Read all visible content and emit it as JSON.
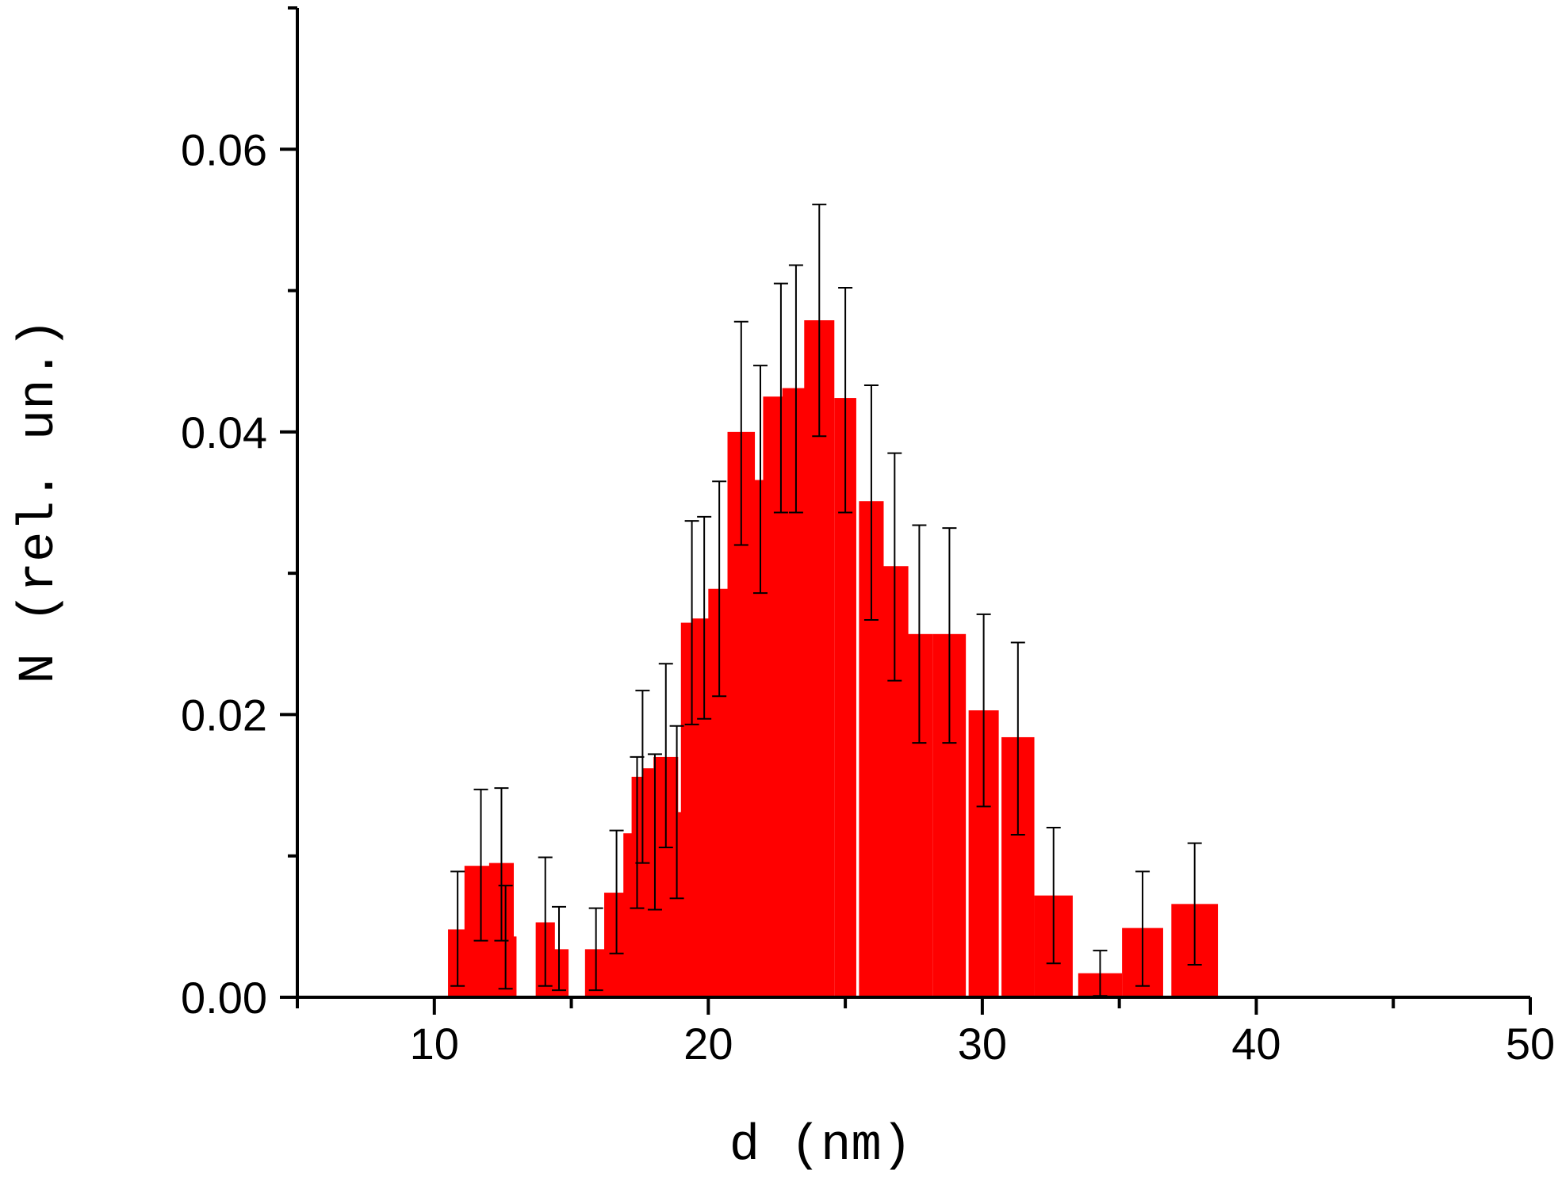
{
  "chart_data": {
    "type": "bar",
    "xlabel": "d (nm)",
    "ylabel": "N (rel. un.)",
    "xlim": [
      5,
      50
    ],
    "ylim": [
      0,
      0.07
    ],
    "x_ticks": [
      "10",
      "20",
      "30",
      "40",
      "50"
    ],
    "y_ticks": [
      "0.00",
      "0.02",
      "0.04",
      "0.06"
    ],
    "grid": false,
    "bar_color": "#ff0000",
    "error_bar_color": "#000000",
    "series": [
      {
        "bars": [
          {
            "x0": 10.5,
            "x1": 11.2,
            "value": 0.0048,
            "err_low": 0.0008,
            "err_high": 0.0089
          },
          {
            "x0": 11.1,
            "x1": 12.3,
            "value": 0.0093,
            "err_low": 0.004,
            "err_high": 0.0147
          },
          {
            "x0": 12.0,
            "x1": 12.9,
            "value": 0.0095,
            "err_low": 0.004,
            "err_high": 0.0148
          },
          {
            "x0": 12.2,
            "x1": 13.0,
            "value": 0.0043,
            "err_low": 0.0006,
            "err_high": 0.0079
          },
          {
            "x0": 13.7,
            "x1": 14.4,
            "value": 0.0053,
            "err_low": 0.0008,
            "err_high": 0.0099
          },
          {
            "x0": 14.2,
            "x1": 14.9,
            "value": 0.0034,
            "err_low": 0.0005,
            "err_high": 0.0064
          },
          {
            "x0": 15.5,
            "x1": 16.3,
            "value": 0.0034,
            "err_low": 0.0005,
            "err_high": 0.0063
          },
          {
            "x0": 16.2,
            "x1": 17.1,
            "value": 0.0074,
            "err_low": 0.0031,
            "err_high": 0.0118
          },
          {
            "x0": 16.9,
            "x1": 17.9,
            "value": 0.0116,
            "err_low": 0.0063,
            "err_high": 0.017
          },
          {
            "x0": 17.2,
            "x1": 18.0,
            "value": 0.0156,
            "err_low": 0.0095,
            "err_high": 0.0217
          },
          {
            "x0": 17.6,
            "x1": 18.5,
            "value": 0.0162,
            "err_low": 0.0062,
            "err_high": 0.0172
          },
          {
            "x0": 18.0,
            "x1": 18.9,
            "value": 0.017,
            "err_low": 0.0106,
            "err_high": 0.0236
          },
          {
            "x0": 18.5,
            "x1": 19.2,
            "value": 0.0131,
            "err_low": 0.007,
            "err_high": 0.0192
          },
          {
            "x0": 19.0,
            "x1": 19.8,
            "value": 0.0265,
            "err_low": 0.0193,
            "err_high": 0.0337
          },
          {
            "x0": 19.4,
            "x1": 20.3,
            "value": 0.0268,
            "err_low": 0.0197,
            "err_high": 0.034
          },
          {
            "x0": 20.0,
            "x1": 20.8,
            "value": 0.0289,
            "err_low": 0.0213,
            "err_high": 0.0365
          },
          {
            "x0": 20.7,
            "x1": 21.7,
            "value": 0.04,
            "err_low": 0.032,
            "err_high": 0.0478
          },
          {
            "x0": 21.5,
            "x1": 22.3,
            "value": 0.0366,
            "err_low": 0.0286,
            "err_high": 0.0447
          },
          {
            "x0": 22.0,
            "x1": 23.3,
            "value": 0.0425,
            "err_low": 0.0343,
            "err_high": 0.0505
          },
          {
            "x0": 22.7,
            "x1": 23.7,
            "value": 0.0431,
            "err_low": 0.0343,
            "err_high": 0.0518
          },
          {
            "x0": 23.5,
            "x1": 24.6,
            "value": 0.0479,
            "err_low": 0.0397,
            "err_high": 0.0561
          },
          {
            "x0": 24.6,
            "x1": 25.4,
            "value": 0.0424,
            "err_low": 0.0343,
            "err_high": 0.0502
          },
          {
            "x0": 25.5,
            "x1": 26.4,
            "value": 0.0351,
            "err_low": 0.0267,
            "err_high": 0.0433
          },
          {
            "x0": 26.3,
            "x1": 27.3,
            "value": 0.0305,
            "err_low": 0.0224,
            "err_high": 0.0385
          },
          {
            "x0": 27.2,
            "x1": 28.2,
            "value": 0.0257,
            "err_low": 0.018,
            "err_high": 0.0334
          },
          {
            "x0": 28.2,
            "x1": 29.4,
            "value": 0.0257,
            "err_low": 0.018,
            "err_high": 0.0332
          },
          {
            "x0": 29.5,
            "x1": 30.6,
            "value": 0.0203,
            "err_low": 0.0135,
            "err_high": 0.0271
          },
          {
            "x0": 30.7,
            "x1": 31.9,
            "value": 0.0184,
            "err_low": 0.0115,
            "err_high": 0.0251
          },
          {
            "x0": 31.9,
            "x1": 33.3,
            "value": 0.0072,
            "err_low": 0.0024,
            "err_high": 0.012
          },
          {
            "x0": 33.5,
            "x1": 35.1,
            "value": 0.0017,
            "err_low": 0.0001,
            "err_high": 0.0033
          },
          {
            "x0": 35.1,
            "x1": 36.6,
            "value": 0.0049,
            "err_low": 0.0008,
            "err_high": 0.0089
          },
          {
            "x0": 36.9,
            "x1": 38.6,
            "value": 0.0066,
            "err_low": 0.0023,
            "err_high": 0.0109
          }
        ]
      }
    ]
  }
}
